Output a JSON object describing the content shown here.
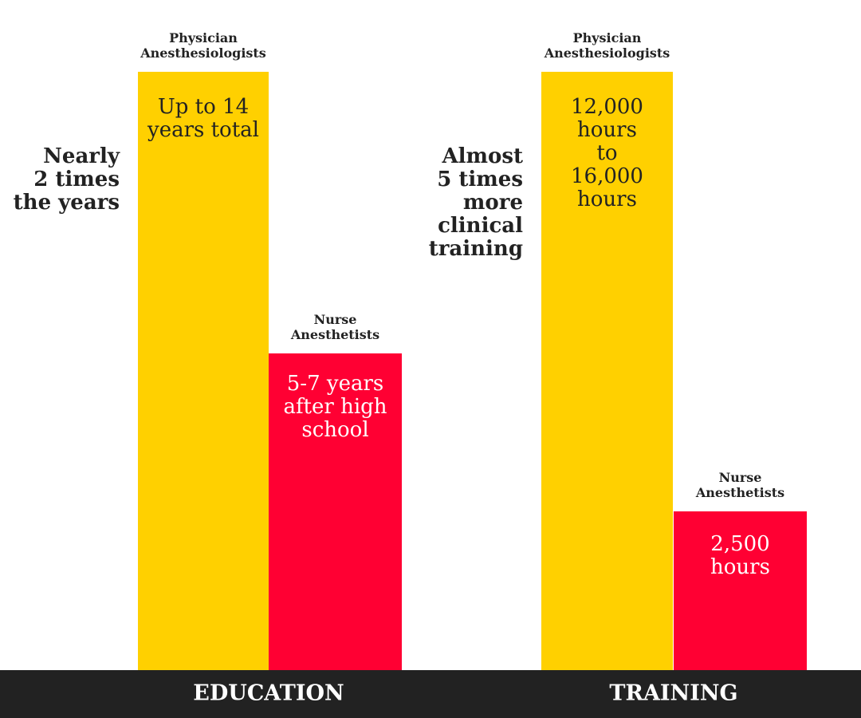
{
  "groups": [
    {
      "category": "EDUCATION",
      "note": [
        "Nearly",
        "2 times",
        "the years"
      ],
      "bars": [
        {
          "label": [
            "Physician",
            "Anesthesiologists"
          ],
          "text": [
            "Up to 14",
            "years total"
          ]
        },
        {
          "label": [
            "Nurse",
            "Anesthetists"
          ],
          "text": [
            "5-7 years",
            "after high",
            "school"
          ]
        }
      ]
    },
    {
      "category": "TRAINING",
      "note": [
        "Almost",
        "5 times",
        "more",
        "clinical",
        "training"
      ],
      "bars": [
        {
          "label": [
            "Physician",
            "Anesthesiologists"
          ],
          "text": [
            "12,000",
            "hours",
            "to",
            "16,000",
            "hours"
          ]
        },
        {
          "label": [
            "Nurse",
            "Anesthetists"
          ],
          "text": [
            "2,500",
            "hours"
          ]
        }
      ]
    }
  ]
}
